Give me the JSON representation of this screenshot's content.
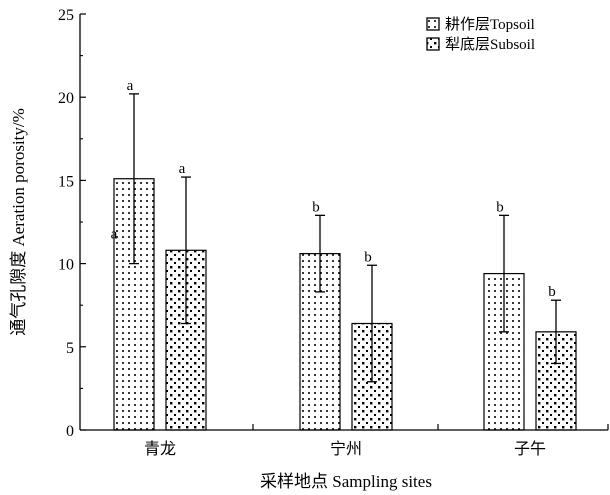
{
  "chart_data": {
    "type": "bar",
    "categories": [
      "青龙",
      "宁州",
      "子午"
    ],
    "series": [
      {
        "name": "耕作层Topsoil",
        "values": [
          15.1,
          10.6,
          9.4
        ],
        "error": [
          5.1,
          2.3,
          3.5
        ],
        "sig": [
          "a",
          "b",
          "b"
        ],
        "pattern": "dots-dense"
      },
      {
        "name": "犁底层Subsoil",
        "values": [
          10.8,
          6.4,
          5.9
        ],
        "error": [
          4.4,
          3.5,
          1.9
        ],
        "sig": [
          "a",
          "b",
          "b"
        ],
        "pattern": "dots-sparse"
      }
    ],
    "extra_labels": [
      {
        "text": "a",
        "category_index": 0,
        "series_index": 0,
        "y": 11.8
      }
    ],
    "title": "",
    "xlabel": "采样地点 Sampling sites",
    "ylabel": "通气孔隙度 Aeration porosity/%",
    "ylim": [
      0,
      25
    ],
    "yticks": [
      0,
      5,
      10,
      15,
      20,
      25
    ],
    "grid": false,
    "legend_position": "top-right"
  }
}
